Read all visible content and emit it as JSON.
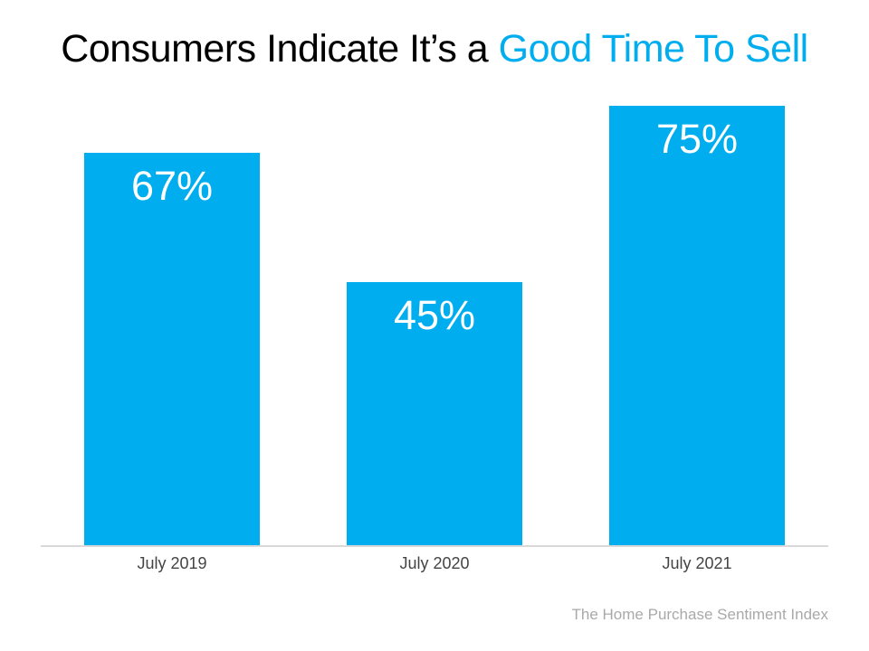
{
  "title": {
    "black_part": "Consumers Indicate It’s a ",
    "accent_part": "Good Time To Sell",
    "accent_color": "#00AEEF"
  },
  "chart_data": {
    "type": "bar",
    "title": "Consumers Indicate It’s a Good Time To Sell",
    "categories": [
      "July 2019",
      "July 2020",
      "July 2021"
    ],
    "values": [
      67,
      45,
      75
    ],
    "value_labels": [
      "67%",
      "45%",
      "75%"
    ],
    "xlabel": "",
    "ylabel": "",
    "ylim": [
      0,
      80
    ],
    "grid": false,
    "legend": false,
    "bar_color": "#00AEEF",
    "value_label_color": "#ffffff",
    "axis_line_color": "#d9d9d9",
    "tick_label_color": "#444444"
  },
  "source_note": "The Home Purchase Sentiment Index"
}
